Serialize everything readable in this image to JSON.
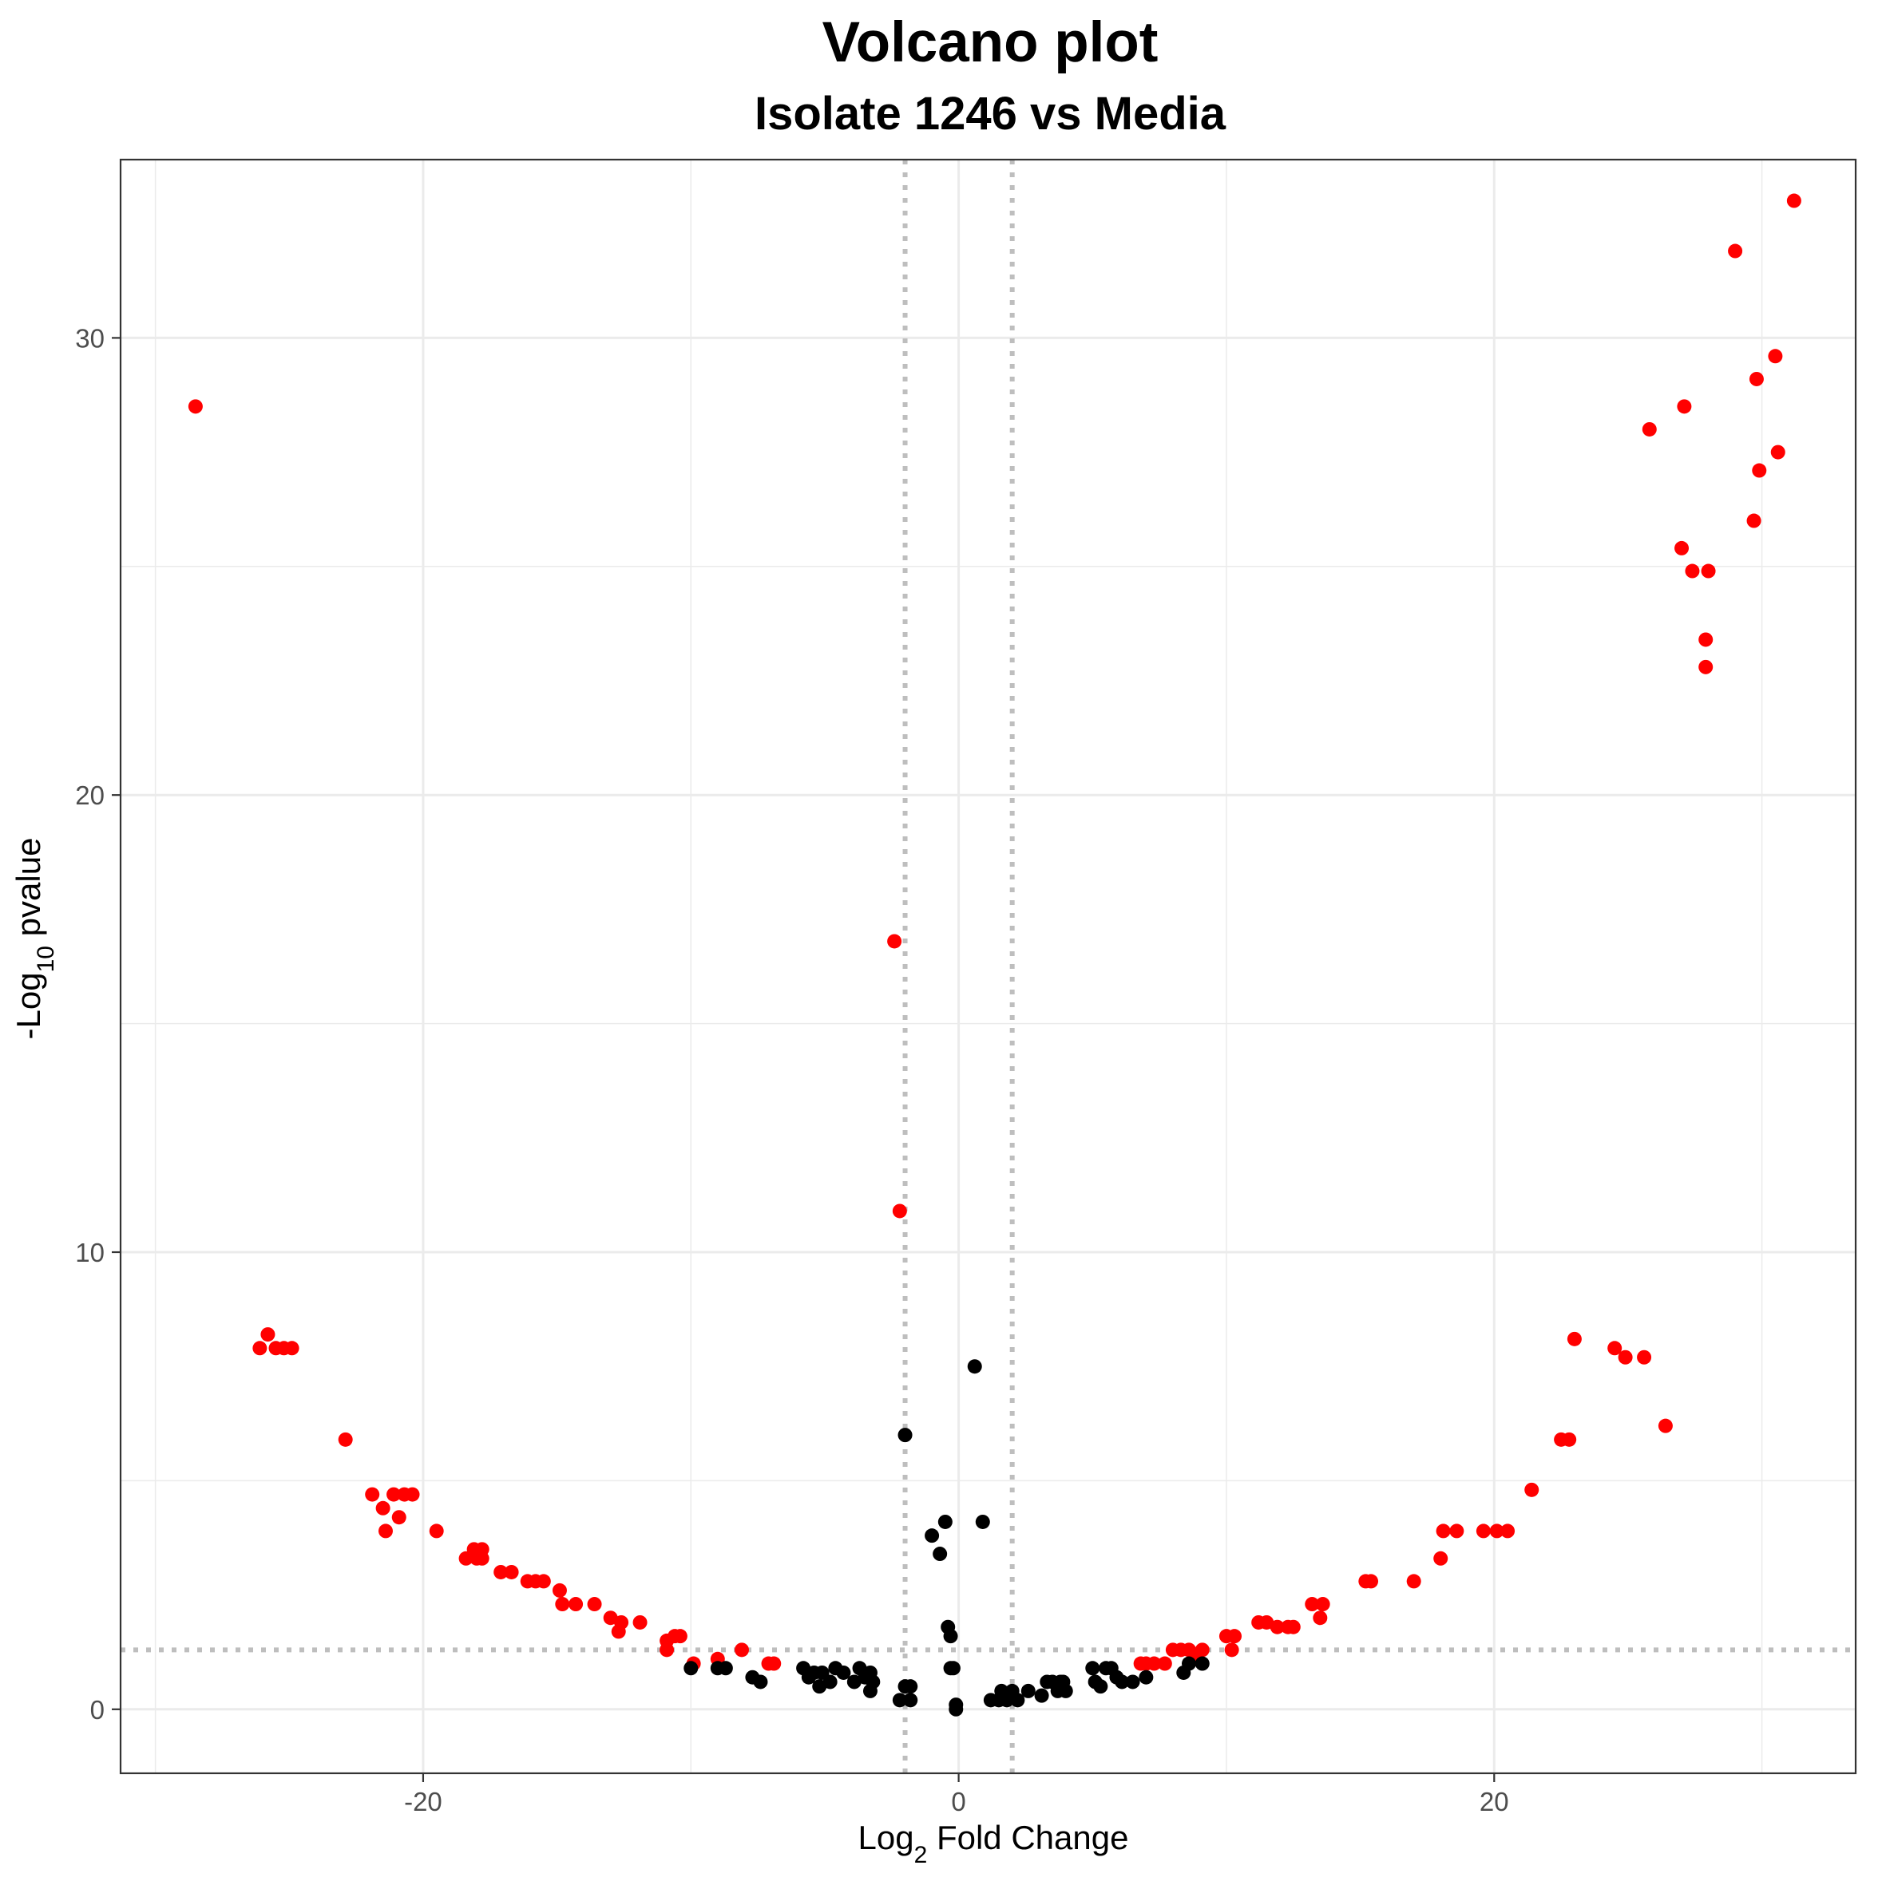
{
  "chart_data": {
    "type": "scatter",
    "title": "Volcano plot",
    "subtitle": "Isolate 1246 vs Media",
    "xlabel": {
      "prefix": "Log",
      "sub": "2",
      "suffix": " Fold Change"
    },
    "ylabel": {
      "prefix": "-Log",
      "sub": "10",
      "suffix": " pvalue"
    },
    "xlim": [
      -31.3,
      33.5
    ],
    "ylim": [
      -1.4,
      33.9
    ],
    "x_ticks": [
      -20,
      0,
      20
    ],
    "x_tick_labels": [
      "-20",
      "0",
      "20"
    ],
    "y_ticks": [
      0,
      10,
      20,
      30
    ],
    "y_tick_labels": [
      "0",
      "10",
      "20",
      "30"
    ],
    "grid": true,
    "colors": {
      "significant": "#ff0000",
      "not_significant": "#000000",
      "threshold_lines": "#bebebe",
      "panel_border": "#333333",
      "grid_major": "#ebebeb"
    },
    "thresholds": {
      "x": [
        -2,
        2
      ],
      "y": 1.3
    },
    "series": [
      {
        "color": "#ff0000",
        "points": [
          [
            -28.5,
            28.5
          ],
          [
            -26.1,
            7.9
          ],
          [
            -25.8,
            8.2
          ],
          [
            -25.5,
            7.9
          ],
          [
            -25.2,
            7.9
          ],
          [
            -24.9,
            7.9
          ],
          [
            -22.9,
            5.9
          ],
          [
            -21.9,
            4.7
          ],
          [
            -21.5,
            4.4
          ],
          [
            -21.4,
            3.9
          ],
          [
            -21.1,
            4.7
          ],
          [
            -20.9,
            4.2
          ],
          [
            -20.7,
            4.7
          ],
          [
            -20.4,
            4.7
          ],
          [
            -19.5,
            3.9
          ],
          [
            -18.4,
            3.3
          ],
          [
            -18.1,
            3.5
          ],
          [
            -18.0,
            3.3
          ],
          [
            -17.8,
            3.5
          ],
          [
            -17.8,
            3.3
          ],
          [
            -17.1,
            3.0
          ],
          [
            -16.7,
            3.0
          ],
          [
            -16.1,
            2.8
          ],
          [
            -15.8,
            2.8
          ],
          [
            -15.5,
            2.8
          ],
          [
            -14.9,
            2.6
          ],
          [
            -14.8,
            2.3
          ],
          [
            -14.3,
            2.3
          ],
          [
            -13.6,
            2.3
          ],
          [
            -13.0,
            2.0
          ],
          [
            -12.7,
            1.7
          ],
          [
            -12.6,
            1.9
          ],
          [
            -11.9,
            1.9
          ],
          [
            -10.9,
            1.3
          ],
          [
            -10.9,
            1.5
          ],
          [
            -10.6,
            1.6
          ],
          [
            -10.4,
            1.6
          ],
          [
            -9.9,
            1.0
          ],
          [
            -9.0,
            1.1
          ],
          [
            -8.1,
            1.3
          ],
          [
            -7.1,
            1.0
          ],
          [
            -6.9,
            1.0
          ],
          [
            -2.4,
            16.8
          ],
          [
            -2.2,
            10.9
          ],
          [
            6.8,
            1.0
          ],
          [
            7.0,
            1.0
          ],
          [
            7.3,
            1.0
          ],
          [
            7.7,
            1.0
          ],
          [
            8.0,
            1.3
          ],
          [
            8.3,
            1.3
          ],
          [
            8.6,
            1.3
          ],
          [
            8.8,
            1.1
          ],
          [
            9.1,
            1.3
          ],
          [
            10.0,
            1.6
          ],
          [
            10.2,
            1.3
          ],
          [
            10.3,
            1.6
          ],
          [
            11.2,
            1.9
          ],
          [
            11.5,
            1.9
          ],
          [
            11.9,
            1.8
          ],
          [
            12.3,
            1.8
          ],
          [
            12.5,
            1.8
          ],
          [
            13.2,
            2.3
          ],
          [
            13.5,
            2.0
          ],
          [
            13.6,
            2.3
          ],
          [
            15.2,
            2.8
          ],
          [
            15.4,
            2.8
          ],
          [
            17.0,
            2.8
          ],
          [
            18.0,
            3.3
          ],
          [
            18.1,
            3.9
          ],
          [
            18.6,
            3.9
          ],
          [
            19.6,
            3.9
          ],
          [
            20.1,
            3.9
          ],
          [
            20.5,
            3.9
          ],
          [
            21.4,
            4.8
          ],
          [
            22.5,
            5.9
          ],
          [
            22.8,
            5.9
          ],
          [
            23.0,
            8.1
          ],
          [
            24.5,
            7.9
          ],
          [
            24.9,
            7.7
          ],
          [
            25.6,
            7.7
          ],
          [
            26.4,
            6.2
          ],
          [
            25.8,
            28.0
          ],
          [
            27.1,
            28.5
          ],
          [
            27.0,
            25.4
          ],
          [
            27.4,
            24.9
          ],
          [
            28.0,
            24.9
          ],
          [
            27.9,
            23.4
          ],
          [
            27.9,
            22.8
          ],
          [
            29.0,
            31.9
          ],
          [
            29.7,
            26.0
          ],
          [
            29.8,
            29.1
          ],
          [
            29.9,
            27.1
          ],
          [
            30.5,
            29.6
          ],
          [
            30.6,
            27.5
          ],
          [
            31.2,
            33.0
          ]
        ]
      },
      {
        "color": "#000000",
        "points": [
          [
            -10.0,
            0.9
          ],
          [
            -9.0,
            0.9
          ],
          [
            -8.7,
            0.9
          ],
          [
            -7.7,
            0.7
          ],
          [
            -7.4,
            0.6
          ],
          [
            -5.8,
            0.9
          ],
          [
            -5.6,
            0.7
          ],
          [
            -5.4,
            0.8
          ],
          [
            -5.2,
            0.5
          ],
          [
            -5.1,
            0.8
          ],
          [
            -4.8,
            0.6
          ],
          [
            -4.6,
            0.9
          ],
          [
            -4.3,
            0.8
          ],
          [
            -3.9,
            0.6
          ],
          [
            -3.7,
            0.9
          ],
          [
            -3.5,
            0.7
          ],
          [
            -3.4,
            0.7
          ],
          [
            -3.3,
            0.4
          ],
          [
            -3.3,
            0.8
          ],
          [
            -3.2,
            0.6
          ],
          [
            -2.2,
            0.2
          ],
          [
            -2.0,
            0.5
          ],
          [
            -1.8,
            0.5
          ],
          [
            -1.8,
            0.2
          ],
          [
            -2.0,
            6.0
          ],
          [
            -1.0,
            3.8
          ],
          [
            -0.7,
            3.4
          ],
          [
            -0.5,
            4.1
          ],
          [
            -0.4,
            1.8
          ],
          [
            -0.3,
            1.6
          ],
          [
            -0.3,
            0.9
          ],
          [
            -0.2,
            0.9
          ],
          [
            -0.1,
            0.0
          ],
          [
            -0.1,
            0.1
          ],
          [
            0.6,
            7.5
          ],
          [
            0.9,
            4.1
          ],
          [
            1.2,
            0.2
          ],
          [
            1.5,
            0.2
          ],
          [
            1.6,
            0.4
          ],
          [
            1.8,
            0.2
          ],
          [
            2.0,
            0.4
          ],
          [
            2.2,
            0.2
          ],
          [
            2.6,
            0.4
          ],
          [
            3.1,
            0.3
          ],
          [
            3.3,
            0.6
          ],
          [
            3.5,
            0.6
          ],
          [
            3.7,
            0.4
          ],
          [
            3.8,
            0.6
          ],
          [
            3.9,
            0.6
          ],
          [
            4.0,
            0.4
          ],
          [
            5.0,
            0.9
          ],
          [
            5.1,
            0.6
          ],
          [
            5.3,
            0.5
          ],
          [
            5.5,
            0.9
          ],
          [
            5.7,
            0.9
          ],
          [
            5.9,
            0.7
          ],
          [
            6.1,
            0.6
          ],
          [
            6.5,
            0.6
          ],
          [
            7.0,
            0.7
          ],
          [
            8.4,
            0.8
          ],
          [
            8.6,
            1.0
          ],
          [
            9.1,
            1.0
          ]
        ]
      }
    ]
  }
}
